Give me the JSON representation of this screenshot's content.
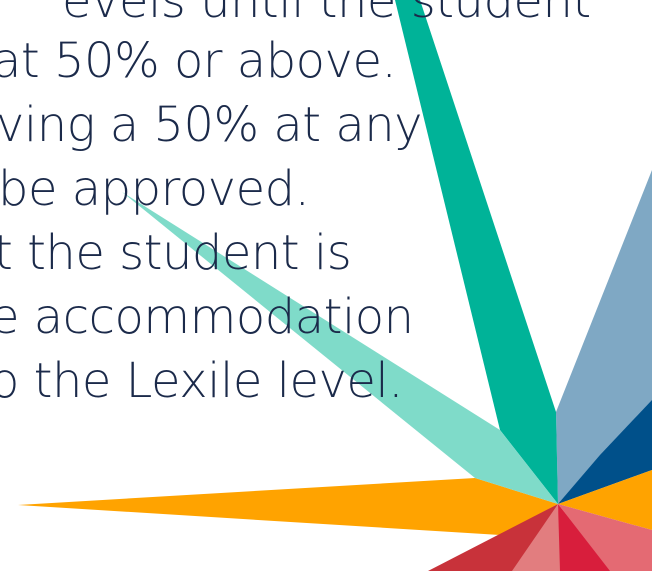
{
  "body_text": {
    "lines": [
      "evels until the student",
      "at 50% or above.",
      "ving a 50% at any",
      "be approved.",
      "t the student is",
      "e accommodation",
      "o the Lexile level."
    ]
  },
  "decoration": {
    "name": "multicolor-starburst",
    "colors": {
      "text": "#1b2a4a",
      "teal": "#00b398",
      "mint": "#7fdbc9",
      "steel_blue": "#7fa8c4",
      "navy": "#00508a",
      "orange": "#ffa300",
      "salmon": "#e46a73",
      "crimson": "#d81e3c",
      "dark_red": "#c8323a",
      "pink": "#e27d7f"
    }
  }
}
